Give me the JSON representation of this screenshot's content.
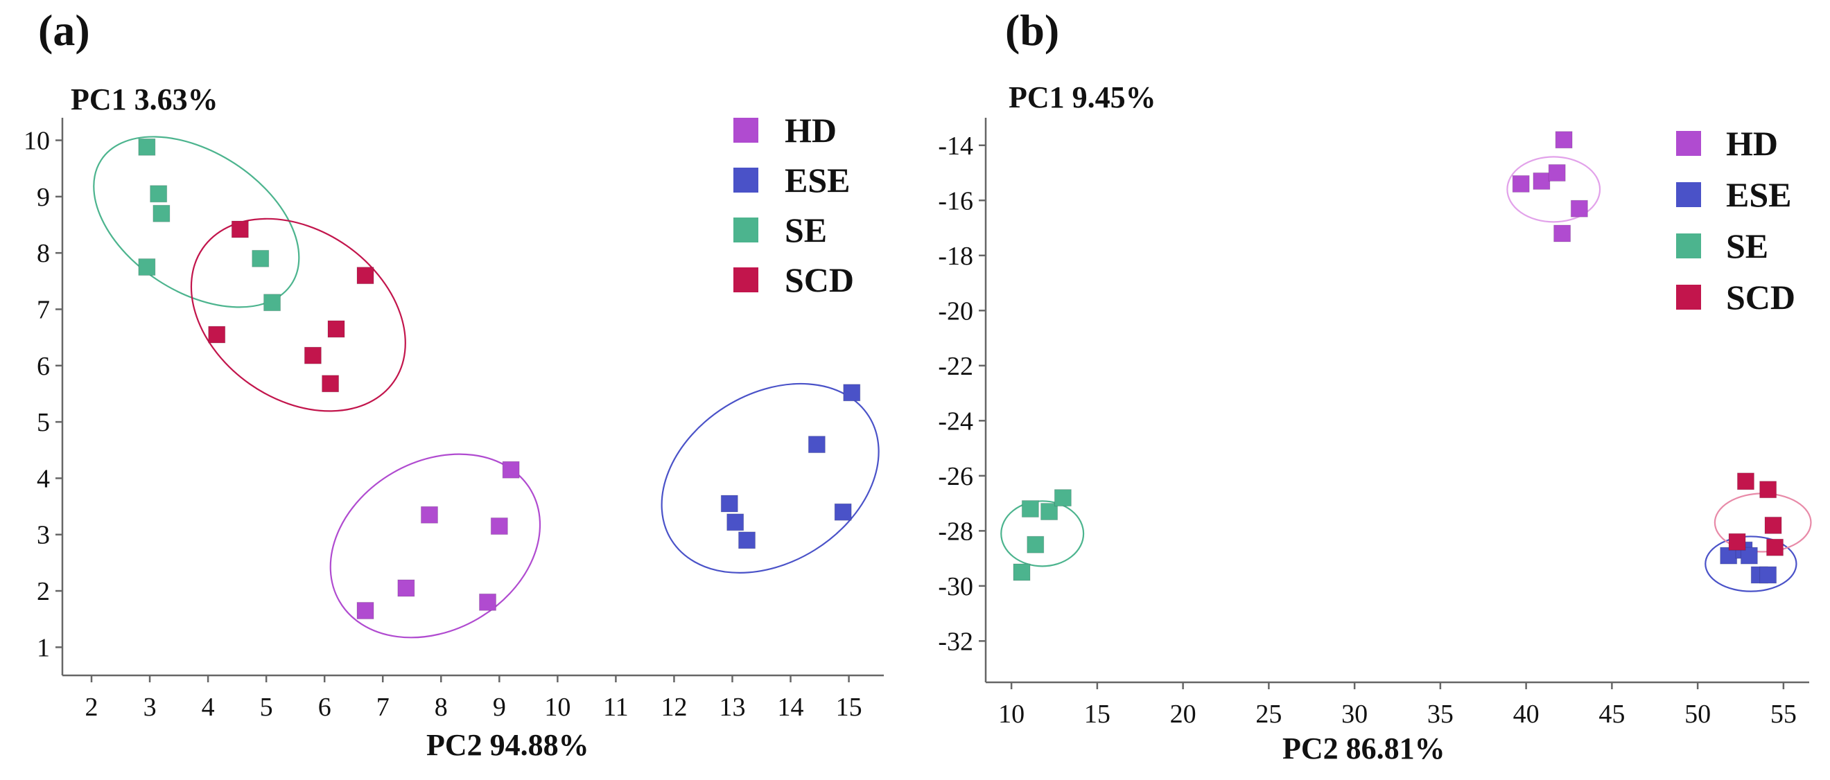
{
  "chart_data": [
    {
      "type": "scatter",
      "panel_label": "(a)",
      "ylabel": "PC1  3.63%",
      "xlabel": "PC2  94.88%",
      "xlim": [
        1.5,
        15.6
      ],
      "ylim": [
        0.5,
        10.4
      ],
      "xticks": [
        2,
        3,
        4,
        5,
        6,
        7,
        8,
        9,
        10,
        11,
        12,
        13,
        14,
        15
      ],
      "yticks": [
        1,
        2,
        3,
        4,
        5,
        6,
        7,
        8,
        9,
        10
      ],
      "grid": false,
      "legend_position": "top-right",
      "series": [
        {
          "name": "HD",
          "color": "#b04bd0",
          "points": [
            [
              6.7,
              1.65
            ],
            [
              7.4,
              2.05
            ],
            [
              7.8,
              3.35
            ],
            [
              8.8,
              1.8
            ],
            [
              9.0,
              3.15
            ],
            [
              9.2,
              4.15
            ]
          ]
        },
        {
          "name": "ESE",
          "color": "#4a52c8",
          "points": [
            [
              12.95,
              3.55
            ],
            [
              13.05,
              3.22
            ],
            [
              13.25,
              2.9
            ],
            [
              14.45,
              4.6
            ],
            [
              14.9,
              3.4
            ],
            [
              15.05,
              5.52
            ]
          ]
        },
        {
          "name": "SE",
          "color": "#4cb48e",
          "points": [
            [
              2.95,
              9.88
            ],
            [
              3.15,
              9.05
            ],
            [
              3.2,
              8.7
            ],
            [
              2.95,
              7.75
            ],
            [
              4.9,
              7.9
            ],
            [
              5.1,
              7.12
            ]
          ]
        },
        {
          "name": "SCD",
          "color": "#c2154c",
          "points": [
            [
              4.55,
              8.42
            ],
            [
              4.15,
              6.55
            ],
            [
              5.8,
              6.18
            ],
            [
              6.1,
              5.68
            ],
            [
              6.2,
              6.65
            ],
            [
              6.7,
              7.6
            ]
          ]
        }
      ],
      "ellipses": [
        {
          "group": "HD",
          "color": "#b04bd0",
          "cx": 7.9,
          "cy": 2.8,
          "rx": 1.9,
          "ry": 1.45,
          "angle_deg": -30
        },
        {
          "group": "ESE",
          "color": "#4a52c8",
          "cx": 13.65,
          "cy": 4.0,
          "rx": 2.0,
          "ry": 1.45,
          "angle_deg": -32
        },
        {
          "group": "SE",
          "color": "#4cb48e",
          "cx": 3.8,
          "cy": 8.55,
          "rx": 1.95,
          "ry": 1.2,
          "angle_deg": 33
        },
        {
          "group": "SCD",
          "color": "#c2154c",
          "cx": 5.55,
          "cy": 6.9,
          "rx": 2.0,
          "ry": 1.45,
          "angle_deg": 35
        }
      ]
    },
    {
      "type": "scatter",
      "panel_label": "(b)",
      "ylabel": "PC1  9.45%",
      "xlabel": "PC2  86.81%",
      "xlim": [
        8.5,
        56.5
      ],
      "ylim": [
        -33.5,
        -13.0
      ],
      "xticks": [
        10,
        15,
        20,
        25,
        30,
        35,
        40,
        45,
        50,
        55
      ],
      "yticks": [
        -14,
        -16,
        -18,
        -20,
        -22,
        -24,
        -26,
        -28,
        -30,
        -32
      ],
      "grid": false,
      "legend_position": "top-right",
      "series": [
        {
          "name": "HD",
          "color": "#b04bd0",
          "points": [
            [
              42.2,
              -13.8
            ],
            [
              39.7,
              -15.4
            ],
            [
              40.9,
              -15.3
            ],
            [
              41.8,
              -15.0
            ],
            [
              43.1,
              -16.3
            ],
            [
              42.1,
              -17.2
            ]
          ]
        },
        {
          "name": "ESE",
          "color": "#4a52c8",
          "points": [
            [
              51.8,
              -28.9
            ],
            [
              52.7,
              -28.7
            ],
            [
              53.0,
              -28.9
            ],
            [
              53.6,
              -29.6
            ],
            [
              54.1,
              -29.6
            ]
          ]
        },
        {
          "name": "SE",
          "color": "#4cb48e",
          "points": [
            [
              11.1,
              -27.2
            ],
            [
              12.2,
              -27.3
            ],
            [
              13.0,
              -26.8
            ],
            [
              11.4,
              -28.5
            ],
            [
              10.6,
              -29.5
            ]
          ]
        },
        {
          "name": "SCD",
          "color": "#c2154c",
          "points": [
            [
              52.8,
              -26.2
            ],
            [
              54.1,
              -26.5
            ],
            [
              54.4,
              -27.8
            ],
            [
              52.3,
              -28.4
            ],
            [
              54.5,
              -28.6
            ]
          ]
        }
      ],
      "ellipses": [
        {
          "group": "HD",
          "color": "#e2a2ea",
          "cx": 41.6,
          "cy": -15.6,
          "rx": 2.7,
          "ry": 1.9,
          "angle_deg": 0
        },
        {
          "group": "ESE",
          "color": "#4a52c8",
          "cx": 53.1,
          "cy": -29.2,
          "rx": 2.65,
          "ry": 1.6,
          "angle_deg": 0
        },
        {
          "group": "SE",
          "color": "#4cb48e",
          "cx": 11.8,
          "cy": -28.1,
          "rx": 2.4,
          "ry": 1.9,
          "angle_deg": 0
        },
        {
          "group": "SCD",
          "color": "#e88aa8",
          "cx": 53.8,
          "cy": -27.7,
          "rx": 2.8,
          "ry": 1.7,
          "angle_deg": 0
        }
      ]
    }
  ]
}
